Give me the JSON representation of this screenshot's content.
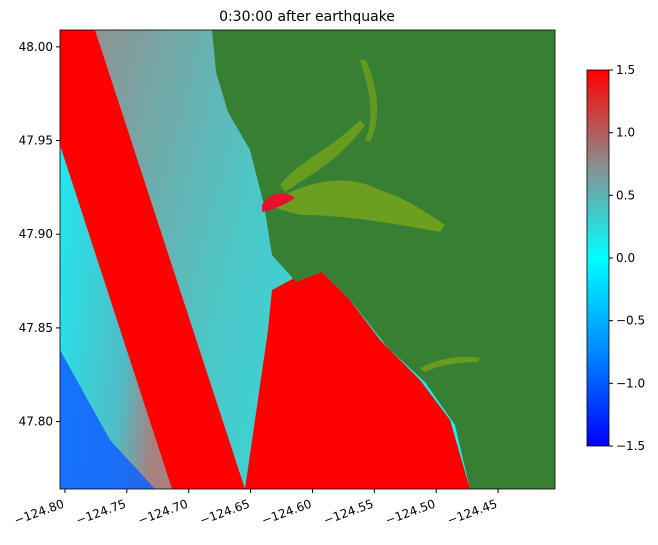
{
  "chart_data": {
    "type": "heatmap",
    "title": "0:30:00 after earthquake",
    "xlim": [
      -124.804,
      -124.404
    ],
    "ylim": [
      47.764,
      48.009
    ],
    "xticks": [
      {
        "value": -124.8,
        "label": "−124.80"
      },
      {
        "value": -124.75,
        "label": "−124.75"
      },
      {
        "value": -124.7,
        "label": "−124.70"
      },
      {
        "value": -124.65,
        "label": "−124.65"
      },
      {
        "value": -124.6,
        "label": "−124.60"
      },
      {
        "value": -124.55,
        "label": "−124.55"
      },
      {
        "value": -124.5,
        "label": "−124.50"
      },
      {
        "value": -124.45,
        "label": "−124.45"
      }
    ],
    "yticks": [
      {
        "value": 48.0,
        "label": "48.00"
      },
      47.95,
      {
        "value": 47.9,
        "label": "47.90"
      },
      47.85,
      {
        "value": 47.8,
        "label": "47.80"
      }
    ],
    "colorbar": {
      "lim": [
        -1.5,
        1.5
      ],
      "ticks": [
        {
          "value": -1.5,
          "label": "−1.5"
        },
        {
          "value": -1.0,
          "label": "−1.0"
        },
        {
          "value": -0.5,
          "label": "−0.5"
        },
        {
          "value": 0.0,
          "label": "0.0"
        },
        0.5,
        {
          "value": 1.0,
          "label": "1.0"
        },
        1.5
      ],
      "colors": [
        "#0000ff",
        "#0088ff",
        "#00ffff",
        "#8c8c8c",
        "#ff0000"
      ]
    }
  }
}
